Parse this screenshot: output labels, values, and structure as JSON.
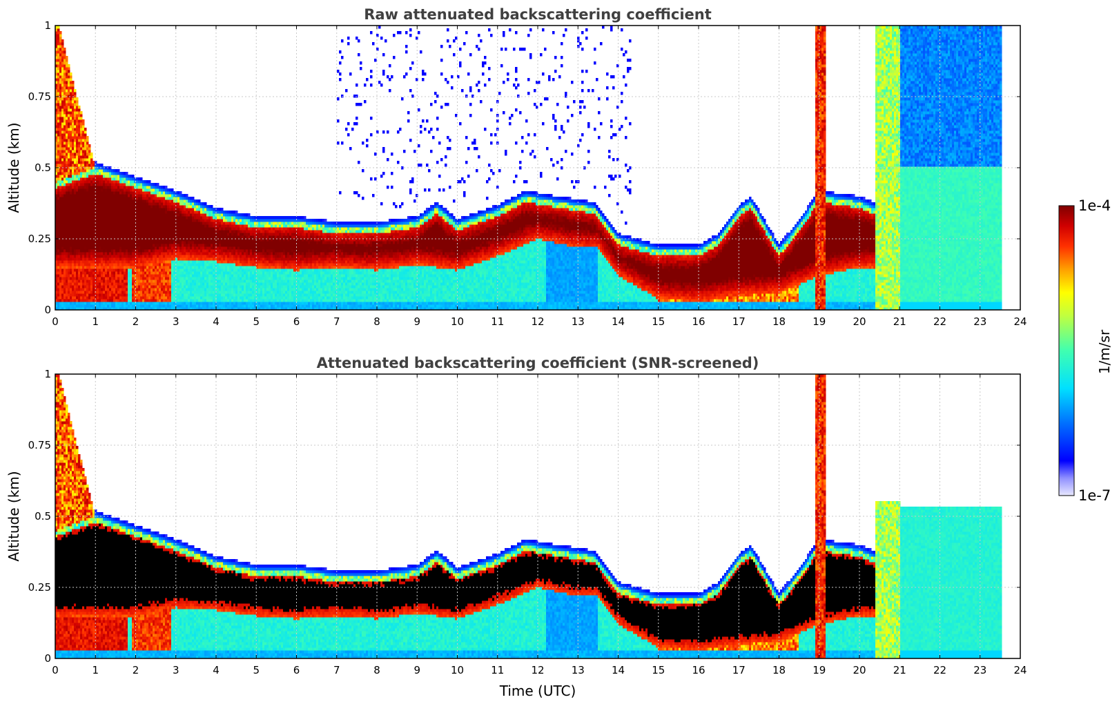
{
  "chart_data": [
    {
      "type": "heatmap",
      "title": "Raw attenuated backscattering coefficient",
      "xlabel": "",
      "ylabel": "Altitude (km)",
      "xlim": [
        0,
        24
      ],
      "ylim": [
        0,
        1
      ],
      "xticks": [
        "0",
        "1",
        "2",
        "3",
        "4",
        "5",
        "6",
        "7",
        "8",
        "9",
        "10",
        "11",
        "12",
        "13",
        "14",
        "15",
        "16",
        "17",
        "18",
        "19",
        "20",
        "21",
        "22",
        "23",
        "24"
      ],
      "yticks": [
        "0",
        "0.25",
        "0.5",
        "0.75",
        "1"
      ],
      "grid": true,
      "screened": false,
      "aerosol_layer_top_km": {
        "t": [
          0,
          1,
          2,
          3,
          4,
          5,
          6,
          7,
          8,
          9,
          9.5,
          10,
          11,
          11.7,
          12.5,
          13.4,
          14,
          15,
          16,
          16.5,
          17,
          17.3,
          18,
          18.5,
          19,
          20,
          20.5
        ],
        "z": [
          0.45,
          0.5,
          0.45,
          0.4,
          0.34,
          0.31,
          0.31,
          0.29,
          0.29,
          0.31,
          0.36,
          0.3,
          0.35,
          0.4,
          0.38,
          0.36,
          0.25,
          0.21,
          0.21,
          0.25,
          0.35,
          0.38,
          0.21,
          0.3,
          0.4,
          0.38,
          0.35
        ]
      },
      "aerosol_layer_bottom_km": {
        "t": [
          0,
          2,
          3,
          4,
          5,
          6,
          7,
          8,
          9,
          10,
          11,
          12,
          13,
          13.5,
          14,
          15,
          16,
          17,
          18,
          19,
          20
        ],
        "z": [
          0.15,
          0.15,
          0.18,
          0.17,
          0.15,
          0.14,
          0.15,
          0.14,
          0.16,
          0.14,
          0.19,
          0.25,
          0.22,
          0.22,
          0.12,
          0.04,
          0.03,
          0.05,
          0.06,
          0.12,
          0.15
        ]
      }
    },
    {
      "type": "heatmap",
      "title": "Attenuated backscattering coefficient (SNR-screened)",
      "xlabel": "Time (UTC)",
      "ylabel": "Altitude (km)",
      "xlim": [
        0,
        24
      ],
      "ylim": [
        0,
        1
      ],
      "xticks": [
        "0",
        "1",
        "2",
        "3",
        "4",
        "5",
        "6",
        "7",
        "8",
        "9",
        "10",
        "11",
        "12",
        "13",
        "14",
        "15",
        "16",
        "17",
        "18",
        "19",
        "20",
        "21",
        "22",
        "23",
        "24"
      ],
      "yticks": [
        "0",
        "0.25",
        "0.5",
        "0.75",
        "1"
      ],
      "grid": true,
      "screened": true
    }
  ],
  "colorbar": {
    "label": "1/m/sr",
    "max_label": "1e-4",
    "min_label": "1e-7",
    "colormap": "jet"
  },
  "colors": {
    "title": "#404040",
    "grid": "#c8c8c8",
    "saturated": "#000000"
  }
}
